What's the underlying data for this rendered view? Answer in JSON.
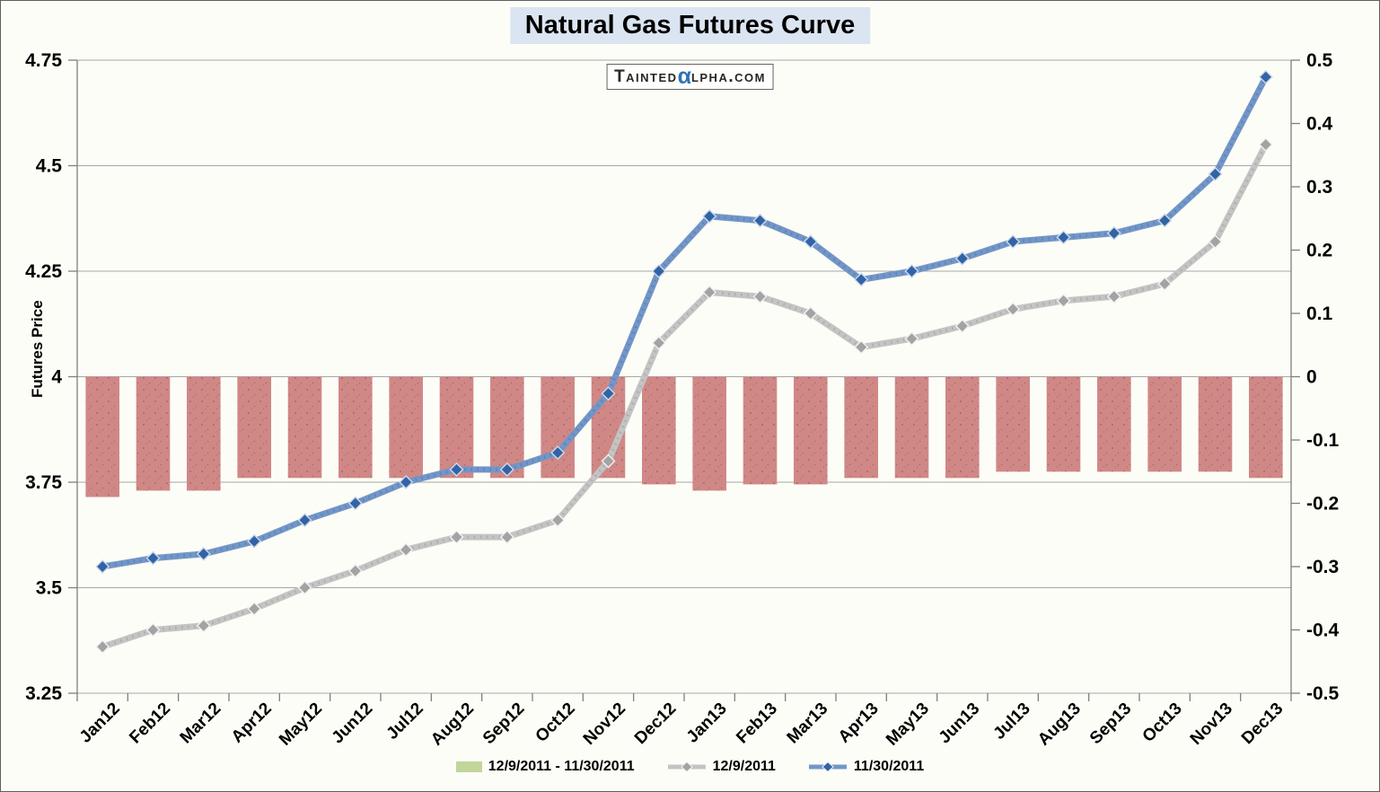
{
  "header": {
    "title": "Natural Gas Futures Curve"
  },
  "watermark": {
    "prefix": "Tainted",
    "alpha": "α",
    "suffix": "lpha.com"
  },
  "colors": {
    "title_bg": "#dbe5f1",
    "grid": "#a6a6a6",
    "axis": "#7f7f7f",
    "bar_fill": "#d08886",
    "bar_dot": "#a0615f",
    "gray_line": "#c4c4c4",
    "gray_line_dot": "#9b9b9b",
    "gray_marker": "#a3a3a3",
    "blue_line": "#7396c8",
    "blue_line_dot": "#4d74a8",
    "blue_marker": "#3263a6",
    "legend_green": "#c2d59a",
    "watermark_alpha_blue": "#2e74b8"
  },
  "legend": {
    "items": [
      {
        "label": "12/9/2011 - 11/30/2011",
        "swatch": "rect",
        "color": "#c2d59a"
      },
      {
        "label": "12/9/2011",
        "swatch": "line-diamond",
        "color": "#c4c4c4",
        "marker_color": "#a3a3a3"
      },
      {
        "label": "11/30/2011",
        "swatch": "line-diamond",
        "color": "#7396c8",
        "marker_color": "#3263a6"
      }
    ]
  },
  "chart_data": {
    "type": "line+bar combo",
    "title": "Natural Gas Futures Curve",
    "ylabel_left": "Futures Price",
    "grid": true,
    "legend_position": "bottom",
    "categories": [
      "Jan12",
      "Feb12",
      "Mar12",
      "Apr12",
      "May12",
      "Jun12",
      "Jul12",
      "Aug12",
      "Sep12",
      "Oct12",
      "Nov12",
      "Dec12",
      "Jan13",
      "Feb13",
      "Mar13",
      "Apr13",
      "May13",
      "Jun13",
      "Jul13",
      "Aug13",
      "Sep13",
      "Oct13",
      "Nov13",
      "Dec13"
    ],
    "left_axis": {
      "min": 3.25,
      "max": 4.75,
      "step": 0.25,
      "tick_labels": [
        "4.75",
        "4.5",
        "4.25",
        "4",
        "3.75",
        "3.5",
        "3.25"
      ]
    },
    "right_axis": {
      "min": -0.5,
      "max": 0.5,
      "step": 0.1,
      "tick_labels": [
        "0.5",
        "0.4",
        "0.3",
        "0.2",
        "0.1",
        "0",
        "-0.1",
        "-0.2",
        "-0.3",
        "-0.4",
        "-0.5"
      ]
    },
    "series": [
      {
        "name": "12/9/2011 - 11/30/2011",
        "type": "bar",
        "axis": "right",
        "bar_color": "#d08886",
        "legend_color": "#c2d59a",
        "values": [
          -0.19,
          -0.18,
          -0.18,
          -0.16,
          -0.16,
          -0.16,
          -0.16,
          -0.16,
          -0.16,
          -0.16,
          -0.16,
          -0.17,
          -0.18,
          -0.17,
          -0.17,
          -0.16,
          -0.16,
          -0.16,
          -0.15,
          -0.15,
          -0.15,
          -0.15,
          -0.15,
          -0.16
        ]
      },
      {
        "name": "12/9/2011",
        "type": "line",
        "axis": "left",
        "color": "#c4c4c4",
        "marker": "diamond",
        "marker_color": "#a3a3a3",
        "values": [
          3.36,
          3.4,
          3.41,
          3.45,
          3.5,
          3.54,
          3.59,
          3.62,
          3.62,
          3.66,
          3.8,
          4.08,
          4.2,
          4.19,
          4.15,
          4.07,
          4.09,
          4.12,
          4.16,
          4.18,
          4.19,
          4.22,
          4.32,
          4.55
        ]
      },
      {
        "name": "11/30/2011",
        "type": "line",
        "axis": "left",
        "color": "#7396c8",
        "marker": "diamond",
        "marker_color": "#3263a6",
        "values": [
          3.55,
          3.57,
          3.58,
          3.61,
          3.66,
          3.7,
          3.75,
          3.78,
          3.78,
          3.82,
          3.96,
          4.25,
          4.38,
          4.37,
          4.32,
          4.23,
          4.25,
          4.28,
          4.32,
          4.33,
          4.34,
          4.37,
          4.48,
          4.71
        ]
      }
    ]
  }
}
